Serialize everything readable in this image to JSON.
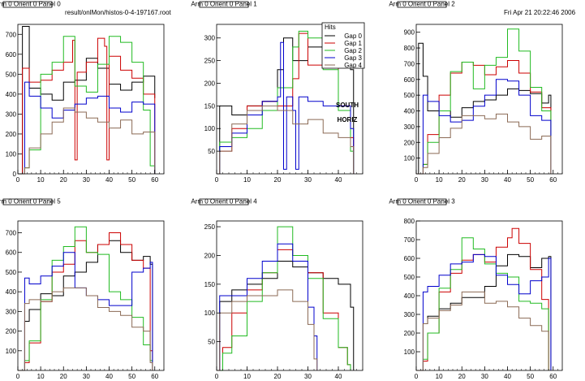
{
  "header": {
    "file_path": "result/onlMon/histos-0-4-197167.root",
    "timestamp": "Fri Apr 21 20:22:46 2006"
  },
  "annotation": {
    "line1": "SOUTH",
    "line2": "HORIZ"
  },
  "colors": {
    "gap0": "#000000",
    "gap1": "#cc0000",
    "gap2": "#22bb22",
    "gap3": "#0000cc",
    "gap4": "#8b6a55",
    "axis": "#000000",
    "background": "#ffffff"
  },
  "chart_data": [
    {
      "type": "line",
      "title": "Arm 0 Orient 0 Panel 0",
      "xlim": [
        0,
        64
      ],
      "ylim": [
        0,
        750
      ],
      "xticks": [
        0,
        10,
        20,
        30,
        40,
        50,
        60
      ],
      "yticks": [
        0,
        100,
        200,
        300,
        400,
        500,
        600,
        700
      ],
      "legend": null,
      "series": [
        {
          "key": "gap0",
          "x": [
            0,
            2,
            5,
            10,
            15,
            20,
            25,
            30,
            35,
            40,
            45,
            50,
            55,
            60
          ],
          "y": [
            0,
            740,
            430,
            400,
            370,
            460,
            470,
            580,
            530,
            450,
            420,
            460,
            490,
            380
          ]
        },
        {
          "key": "gap1",
          "x": [
            0,
            2,
            5,
            10,
            15,
            20,
            24,
            25,
            26,
            30,
            35,
            38,
            39,
            40,
            45,
            50,
            55,
            60
          ],
          "y": [
            0,
            530,
            460,
            470,
            520,
            560,
            670,
            70,
            510,
            560,
            680,
            640,
            70,
            590,
            520,
            480,
            400,
            0
          ]
        },
        {
          "key": "gap2",
          "x": [
            0,
            3,
            5,
            10,
            15,
            20,
            25,
            30,
            35,
            40,
            45,
            50,
            55,
            58,
            60
          ],
          "y": [
            0,
            30,
            120,
            500,
            560,
            690,
            440,
            410,
            550,
            690,
            660,
            560,
            320,
            40,
            0
          ]
        },
        {
          "key": "gap3",
          "x": [
            0,
            3,
            5,
            10,
            15,
            20,
            25,
            30,
            35,
            40,
            45,
            50,
            55,
            60
          ],
          "y": [
            0,
            460,
            390,
            330,
            280,
            320,
            350,
            380,
            390,
            330,
            310,
            360,
            350,
            0
          ]
        },
        {
          "key": "gap4",
          "x": [
            0,
            3,
            5,
            10,
            15,
            20,
            25,
            30,
            35,
            40,
            45,
            50,
            55,
            60
          ],
          "y": [
            0,
            30,
            130,
            200,
            260,
            330,
            310,
            280,
            260,
            230,
            270,
            200,
            210,
            0
          ]
        }
      ]
    },
    {
      "type": "line",
      "title": "Arm 0 Orient 0 Panel 1",
      "xlim": [
        0,
        48
      ],
      "ylim": [
        0,
        330
      ],
      "xticks": [
        0,
        10,
        20,
        30,
        40
      ],
      "yticks": [
        50,
        100,
        150,
        200,
        250,
        300
      ],
      "legend": {
        "title": "Hits",
        "entries": [
          "Gap 0",
          "Gap 1",
          "Gap 2",
          "Gap 3",
          "Gap 4"
        ],
        "position": "top-right"
      },
      "series": [
        {
          "key": "gap0",
          "x": [
            0,
            1,
            5,
            10,
            15,
            20,
            22,
            25,
            30,
            35,
            40,
            44,
            45
          ],
          "y": [
            0,
            150,
            130,
            150,
            160,
            230,
            300,
            250,
            280,
            250,
            280,
            230,
            0
          ]
        },
        {
          "key": "gap1",
          "x": [
            0,
            1,
            5,
            10,
            15,
            20,
            25,
            27,
            30,
            35,
            40,
            44,
            45
          ],
          "y": [
            0,
            50,
            100,
            150,
            160,
            150,
            210,
            310,
            240,
            260,
            150,
            80,
            0
          ]
        },
        {
          "key": "gap2",
          "x": [
            0,
            1,
            5,
            10,
            15,
            20,
            25,
            27,
            30,
            35,
            40,
            44,
            45
          ],
          "y": [
            0,
            70,
            80,
            100,
            140,
            190,
            280,
            315,
            300,
            230,
            140,
            50,
            0
          ]
        },
        {
          "key": "gap3",
          "x": [
            0,
            1,
            5,
            10,
            15,
            20,
            21,
            22,
            23,
            25,
            26,
            27,
            30,
            35,
            40,
            44,
            45
          ],
          "y": [
            0,
            60,
            90,
            130,
            160,
            170,
            290,
            10,
            170,
            140,
            10,
            170,
            160,
            150,
            150,
            100,
            0
          ]
        },
        {
          "key": "gap4",
          "x": [
            0,
            1,
            5,
            10,
            15,
            20,
            25,
            30,
            35,
            40,
            44,
            45
          ],
          "y": [
            0,
            50,
            110,
            140,
            150,
            140,
            110,
            120,
            90,
            80,
            60,
            0
          ]
        }
      ]
    },
    {
      "type": "line",
      "title": "Arm 0 Orient 0 Panel 2",
      "xlim": [
        0,
        64
      ],
      "ylim": [
        0,
        950
      ],
      "xticks": [
        0,
        10,
        20,
        30,
        40,
        50,
        60
      ],
      "yticks": [
        100,
        200,
        300,
        400,
        500,
        600,
        700,
        800,
        900
      ],
      "legend": null,
      "series": [
        {
          "key": "gap0",
          "x": [
            0,
            1,
            3,
            5,
            10,
            15,
            20,
            25,
            30,
            35,
            40,
            45,
            50,
            55,
            58,
            59
          ],
          "y": [
            0,
            830,
            620,
            400,
            400,
            360,
            420,
            460,
            470,
            500,
            540,
            530,
            510,
            450,
            500,
            0
          ]
        },
        {
          "key": "gap1",
          "x": [
            0,
            3,
            5,
            10,
            15,
            20,
            25,
            30,
            35,
            40,
            45,
            50,
            55,
            59
          ],
          "y": [
            0,
            60,
            250,
            500,
            640,
            710,
            690,
            630,
            680,
            720,
            640,
            520,
            420,
            0
          ]
        },
        {
          "key": "gap2",
          "x": [
            0,
            3,
            5,
            10,
            15,
            20,
            25,
            30,
            35,
            40,
            45,
            50,
            55,
            59
          ],
          "y": [
            0,
            60,
            200,
            400,
            650,
            710,
            540,
            690,
            740,
            920,
            780,
            550,
            400,
            0
          ]
        },
        {
          "key": "gap3",
          "x": [
            0,
            3,
            5,
            10,
            15,
            20,
            25,
            30,
            35,
            40,
            45,
            50,
            55,
            59
          ],
          "y": [
            0,
            500,
            460,
            370,
            330,
            340,
            430,
            500,
            600,
            590,
            500,
            370,
            340,
            0
          ]
        },
        {
          "key": "gap4",
          "x": [
            0,
            3,
            5,
            10,
            15,
            20,
            25,
            30,
            35,
            40,
            45,
            50,
            55,
            59
          ],
          "y": [
            0,
            40,
            130,
            230,
            290,
            370,
            370,
            350,
            380,
            330,
            300,
            220,
            240,
            0
          ]
        }
      ]
    },
    {
      "type": "line",
      "title": "Arm 0 Orient 0 Panel 5",
      "xlim": [
        0,
        64
      ],
      "ylim": [
        0,
        760
      ],
      "xticks": [
        0,
        10,
        20,
        30,
        40,
        50,
        60
      ],
      "yticks": [
        100,
        200,
        300,
        400,
        500,
        600,
        700
      ],
      "legend": null,
      "series": [
        {
          "key": "gap0",
          "x": [
            0,
            3,
            5,
            10,
            15,
            20,
            25,
            30,
            35,
            40,
            45,
            50,
            55,
            58,
            59
          ],
          "y": [
            0,
            250,
            310,
            390,
            380,
            480,
            500,
            550,
            640,
            660,
            600,
            560,
            580,
            540,
            0
          ]
        },
        {
          "key": "gap1",
          "x": [
            0,
            3,
            5,
            10,
            15,
            20,
            25,
            30,
            35,
            40,
            45,
            50,
            55,
            58,
            59
          ],
          "y": [
            0,
            40,
            140,
            350,
            500,
            540,
            660,
            600,
            640,
            700,
            640,
            560,
            520,
            100,
            0
          ]
        },
        {
          "key": "gap2",
          "x": [
            0,
            3,
            5,
            10,
            15,
            20,
            25,
            30,
            35,
            40,
            45,
            50,
            55,
            58,
            59
          ],
          "y": [
            0,
            50,
            150,
            360,
            560,
            630,
            730,
            600,
            590,
            400,
            360,
            270,
            130,
            50,
            0
          ]
        },
        {
          "key": "gap3",
          "x": [
            0,
            3,
            5,
            10,
            15,
            20,
            25,
            30,
            35,
            40,
            45,
            50,
            55,
            58,
            59
          ],
          "y": [
            0,
            470,
            440,
            480,
            530,
            600,
            420,
            380,
            360,
            330,
            330,
            500,
            520,
            550,
            0
          ]
        },
        {
          "key": "gap4",
          "x": [
            0,
            3,
            5,
            10,
            15,
            20,
            25,
            30,
            35,
            40,
            45,
            50,
            55,
            58,
            59
          ],
          "y": [
            0,
            340,
            360,
            350,
            400,
            420,
            420,
            380,
            320,
            300,
            280,
            220,
            200,
            40,
            0
          ]
        }
      ]
    },
    {
      "type": "line",
      "title": "Arm 0 Orient 0 Panel 4",
      "xlim": [
        0,
        48
      ],
      "ylim": [
        0,
        260
      ],
      "xticks": [
        0,
        10,
        20,
        30,
        40
      ],
      "yticks": [
        50,
        100,
        150,
        200,
        250
      ],
      "legend": null,
      "series": [
        {
          "key": "gap0",
          "x": [
            0,
            1,
            5,
            10,
            15,
            20,
            25,
            30,
            35,
            40,
            44,
            45
          ],
          "y": [
            0,
            120,
            140,
            150,
            160,
            190,
            180,
            170,
            160,
            150,
            110,
            0
          ]
        },
        {
          "key": "gap1",
          "x": [
            0,
            2,
            5,
            10,
            15,
            20,
            25,
            30,
            35,
            40,
            43,
            44
          ],
          "y": [
            0,
            40,
            100,
            140,
            170,
            210,
            200,
            170,
            100,
            40,
            10,
            0
          ]
        },
        {
          "key": "gap2",
          "x": [
            0,
            2,
            5,
            10,
            15,
            20,
            25,
            30,
            35,
            40,
            43,
            44
          ],
          "y": [
            0,
            30,
            60,
            120,
            170,
            250,
            200,
            160,
            90,
            40,
            10,
            0
          ]
        },
        {
          "key": "gap3",
          "x": [
            0,
            1,
            5,
            10,
            15,
            20,
            25,
            30,
            32,
            33
          ],
          "y": [
            0,
            130,
            130,
            160,
            190,
            220,
            190,
            110,
            60,
            0
          ]
        },
        {
          "key": "gap4",
          "x": [
            0,
            1,
            5,
            10,
            15,
            20,
            25,
            30,
            32,
            33
          ],
          "y": [
            0,
            100,
            120,
            130,
            130,
            140,
            120,
            80,
            20,
            0
          ]
        }
      ]
    },
    {
      "type": "line",
      "title": "Arm 0 Orient 0 Panel 3",
      "xlim": [
        0,
        64
      ],
      "ylim": [
        0,
        800
      ],
      "xticks": [
        0,
        10,
        20,
        30,
        40,
        50,
        60
      ],
      "yticks": [
        100,
        200,
        300,
        400,
        500,
        600,
        700,
        800
      ],
      "legend": null,
      "series": [
        {
          "key": "gap0",
          "x": [
            0,
            3,
            5,
            10,
            15,
            20,
            25,
            30,
            35,
            40,
            45,
            50,
            55,
            58,
            59
          ],
          "y": [
            0,
            250,
            290,
            330,
            360,
            390,
            390,
            450,
            560,
            620,
            610,
            550,
            600,
            610,
            0
          ]
        },
        {
          "key": "gap1",
          "x": [
            0,
            3,
            5,
            10,
            15,
            20,
            25,
            30,
            35,
            40,
            42,
            45,
            50,
            55,
            58
          ],
          "y": [
            0,
            50,
            200,
            420,
            520,
            590,
            620,
            580,
            660,
            710,
            760,
            680,
            540,
            380,
            0
          ]
        },
        {
          "key": "gap2",
          "x": [
            0,
            3,
            5,
            10,
            15,
            20,
            25,
            30,
            35,
            40,
            45,
            50,
            55,
            58
          ],
          "y": [
            0,
            60,
            200,
            440,
            540,
            710,
            650,
            570,
            520,
            500,
            370,
            360,
            330,
            0
          ]
        },
        {
          "key": "gap3",
          "x": [
            0,
            3,
            5,
            10,
            15,
            20,
            25,
            30,
            35,
            40,
            45,
            50,
            55,
            58,
            59
          ],
          "y": [
            0,
            420,
            450,
            510,
            570,
            580,
            620,
            610,
            510,
            460,
            410,
            480,
            500,
            600,
            0
          ]
        },
        {
          "key": "gap4",
          "x": [
            0,
            3,
            5,
            10,
            15,
            20,
            25,
            30,
            35,
            40,
            45,
            50,
            55,
            58
          ],
          "y": [
            0,
            250,
            280,
            320,
            350,
            420,
            420,
            360,
            370,
            340,
            280,
            240,
            210,
            0
          ]
        }
      ]
    }
  ]
}
